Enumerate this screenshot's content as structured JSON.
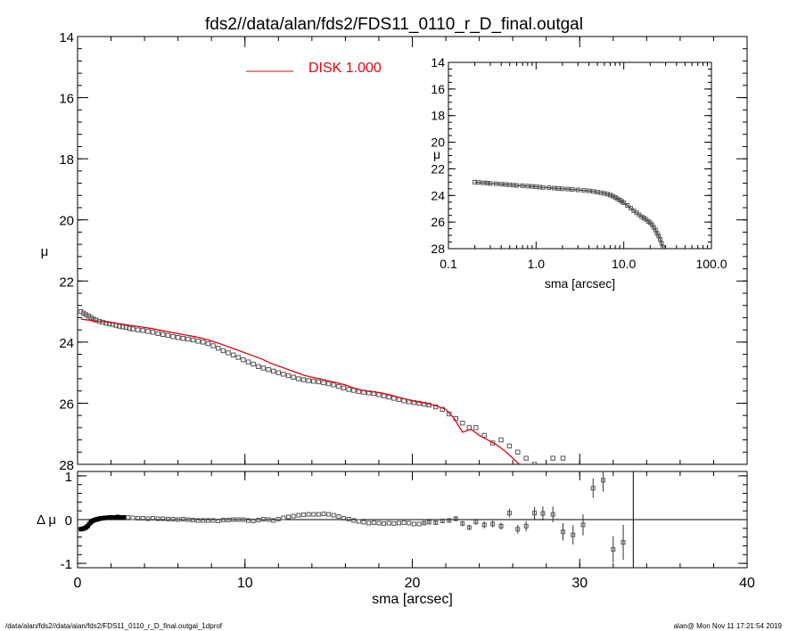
{
  "title": "fds2//data/alan/fds2/FDS11_0110_r_D_final.outgal",
  "footer": {
    "left": "/data/alan/fds2//data/alan/fds2/FDS11_0110_r_D_final.outgal_1dprof",
    "right": "alan@  Mon Nov 11 17:21:54 2019"
  },
  "legend": {
    "label": "DISK  1.000",
    "placement": "top",
    "color": "#e8000b"
  },
  "colors": {
    "model": "#e8000b",
    "data": "#555555",
    "axes": "#000000"
  },
  "chart_data": [
    {
      "type": "scatter",
      "panel": "main",
      "ylabel": "μ",
      "xlim": [
        0,
        40
      ],
      "ylim": [
        28,
        14
      ],
      "yticks": [
        "14",
        "16",
        "18",
        "20",
        "22",
        "24",
        "26",
        "28"
      ],
      "y_inverted": true,
      "series": [
        {
          "name": "data",
          "marker": "open-square",
          "x": [
            0.2,
            0.35,
            0.5,
            0.65,
            0.8,
            0.95,
            1.1,
            1.3,
            1.5,
            1.7,
            1.9,
            2.1,
            2.3,
            2.5,
            2.7,
            2.9,
            3.1,
            3.3,
            3.6,
            3.9,
            4.2,
            4.5,
            4.8,
            5.1,
            5.4,
            5.7,
            6.0,
            6.3,
            6.6,
            6.9,
            7.2,
            7.5,
            7.8,
            8.1,
            8.4,
            8.7,
            9.0,
            9.3,
            9.6,
            9.9,
            10.2,
            10.5,
            10.8,
            11.1,
            11.4,
            11.7,
            12.0,
            12.3,
            12.6,
            12.9,
            13.2,
            13.5,
            13.8,
            14.1,
            14.4,
            14.7,
            15.0,
            15.3,
            15.6,
            15.9,
            16.2,
            16.5,
            16.8,
            17.1,
            17.4,
            17.7,
            18.0,
            18.3,
            18.6,
            18.9,
            19.2,
            19.5,
            19.8,
            20.1,
            20.4,
            20.7,
            21.0,
            21.4,
            21.8,
            22.2,
            22.6,
            23.0,
            23.4,
            23.8,
            24.3,
            24.8,
            25.3,
            25.8,
            26.3,
            26.8,
            27.3,
            27.8,
            28.4,
            29.0
          ],
          "y": [
            23.0,
            23.05,
            23.1,
            23.15,
            23.2,
            23.25,
            23.28,
            23.32,
            23.35,
            23.38,
            23.4,
            23.42,
            23.45,
            23.48,
            23.5,
            23.52,
            23.55,
            23.57,
            23.6,
            23.62,
            23.65,
            23.68,
            23.72,
            23.75,
            23.78,
            23.82,
            23.85,
            23.88,
            23.9,
            23.93,
            23.97,
            24.0,
            24.05,
            24.12,
            24.2,
            24.28,
            24.35,
            24.42,
            24.5,
            24.58,
            24.65,
            24.72,
            24.8,
            24.85,
            24.9,
            24.95,
            25.0,
            25.05,
            25.1,
            25.15,
            25.2,
            25.23,
            25.26,
            25.28,
            25.3,
            25.33,
            25.36,
            25.4,
            25.45,
            25.5,
            25.55,
            25.58,
            25.62,
            25.64,
            25.66,
            25.68,
            25.72,
            25.76,
            25.8,
            25.84,
            25.88,
            25.92,
            25.95,
            25.98,
            26.0,
            26.03,
            26.06,
            26.12,
            26.2,
            26.35,
            26.5,
            26.65,
            26.8,
            26.8,
            27.05,
            27.3,
            27.2,
            27.4,
            27.6,
            27.8,
            28.0,
            28.2,
            27.8,
            27.8
          ]
        },
        {
          "name": "DISK  1.000",
          "type": "line",
          "x": [
            0.2,
            0.5,
            1.0,
            1.5,
            2.0,
            2.5,
            3.0,
            3.5,
            4.0,
            4.5,
            5.0,
            5.5,
            6.0,
            6.5,
            7.0,
            7.5,
            8.0,
            8.5,
            9.0,
            9.5,
            10.0,
            10.5,
            11.0,
            11.5,
            12.0,
            12.5,
            13.0,
            13.5,
            14.0,
            14.5,
            15.0,
            15.5,
            16.0,
            16.5,
            17.0,
            17.5,
            18.0,
            18.5,
            19.0,
            19.5,
            20.0,
            20.5,
            21.0,
            21.5,
            22.0,
            22.5,
            23.0,
            23.5,
            24.0,
            24.5,
            25.0,
            25.5,
            26.0,
            26.5,
            27.0,
            27.5,
            28.0,
            28.5
          ],
          "y": [
            23.25,
            23.27,
            23.3,
            23.33,
            23.36,
            23.4,
            23.44,
            23.48,
            23.52,
            23.56,
            23.62,
            23.67,
            23.72,
            23.77,
            23.82,
            23.88,
            23.96,
            24.05,
            24.15,
            24.25,
            24.35,
            24.45,
            24.55,
            24.68,
            24.78,
            24.88,
            24.98,
            25.08,
            25.15,
            25.2,
            25.27,
            25.33,
            25.4,
            25.5,
            25.58,
            25.62,
            25.65,
            25.7,
            25.78,
            25.85,
            25.92,
            25.97,
            26.02,
            26.1,
            26.2,
            26.5,
            26.95,
            26.85,
            27.05,
            27.2,
            27.35,
            27.55,
            27.8,
            28.05,
            28.2,
            28.3,
            28.2,
            28.2
          ]
        }
      ]
    },
    {
      "type": "scatter",
      "panel": "inset",
      "ylabel": "μ",
      "xlabel": "sma [arcsec]",
      "xscale": "log",
      "xlim": [
        0.1,
        100.0
      ],
      "xticks": [
        "0.1",
        "1.0",
        "10.0",
        "100.0"
      ],
      "ylim": [
        28,
        14
      ],
      "yticks": [
        "14",
        "16",
        "18",
        "20",
        "22",
        "24",
        "26",
        "28"
      ],
      "y_inverted": true,
      "series": [
        {
          "name": "data",
          "marker": "open-square",
          "x": [
            0.2,
            0.22,
            0.25,
            0.28,
            0.3,
            0.35,
            0.4,
            0.45,
            0.5,
            0.55,
            0.6,
            0.7,
            0.8,
            0.9,
            1.0,
            1.1,
            1.2,
            1.4,
            1.6,
            1.8,
            2.0,
            2.3,
            2.6,
            3.0,
            3.5,
            4.0,
            4.5,
            5.0,
            5.5,
            6.0,
            6.5,
            7.0,
            7.5,
            8.0,
            8.5,
            9.0,
            9.5,
            10.0,
            11.0,
            12.0,
            13.0,
            14.0,
            15.0,
            16.0,
            17.0,
            18.0,
            19.0,
            20.0,
            21.0,
            22.0,
            23.0,
            24.0,
            25.0,
            26.0,
            27.0,
            28.0,
            29.0
          ],
          "y": [
            23.0,
            23.02,
            23.05,
            23.07,
            23.1,
            23.12,
            23.15,
            23.18,
            23.2,
            23.22,
            23.25,
            23.27,
            23.3,
            23.32,
            23.35,
            23.37,
            23.4,
            23.42,
            23.45,
            23.48,
            23.5,
            23.52,
            23.55,
            23.58,
            23.62,
            23.65,
            23.7,
            23.75,
            23.8,
            23.85,
            23.9,
            23.97,
            24.05,
            24.15,
            24.25,
            24.35,
            24.45,
            24.55,
            24.75,
            24.95,
            25.15,
            25.3,
            25.45,
            25.6,
            25.7,
            25.8,
            25.95,
            26.05,
            26.2,
            26.4,
            26.6,
            26.85,
            27.05,
            27.3,
            27.6,
            27.9,
            28.2
          ]
        }
      ]
    },
    {
      "type": "scatter",
      "panel": "residual",
      "ylabel": "Δ μ",
      "xlabel": "sma [arcsec]",
      "xlim": [
        0,
        40
      ],
      "xticks": [
        "0",
        "10",
        "20",
        "30",
        "40"
      ],
      "ylim": [
        -1.1,
        1.1
      ],
      "yticks": [
        "1",
        "0",
        "-1"
      ],
      "reference_lines": {
        "y": 0,
        "x": 33.2
      },
      "series": [
        {
          "name": "residuals",
          "marker": "open-square",
          "x": [
            0.2,
            0.3,
            0.4,
            0.5,
            0.6,
            0.7,
            0.8,
            0.9,
            1.0,
            1.1,
            1.2,
            1.3,
            1.4,
            1.5,
            1.6,
            1.7,
            1.8,
            1.9,
            2.0,
            2.2,
            2.4,
            2.6,
            2.8,
            3.0,
            3.3,
            3.6,
            3.9,
            4.2,
            4.5,
            4.8,
            5.1,
            5.4,
            5.7,
            6.0,
            6.3,
            6.6,
            6.9,
            7.2,
            7.5,
            7.8,
            8.1,
            8.4,
            8.7,
            9.0,
            9.3,
            9.6,
            9.9,
            10.2,
            10.5,
            10.8,
            11.1,
            11.4,
            11.7,
            12.0,
            12.3,
            12.6,
            12.9,
            13.2,
            13.5,
            13.8,
            14.1,
            14.4,
            14.7,
            15.0,
            15.3,
            15.6,
            15.9,
            16.2,
            16.5,
            16.8,
            17.1,
            17.4,
            17.7,
            18.0,
            18.3,
            18.6,
            18.9,
            19.2,
            19.5,
            19.8,
            20.1,
            20.4,
            20.7,
            21.0,
            21.4,
            21.8,
            22.2,
            22.6,
            23.0,
            23.4,
            23.8,
            24.3,
            24.8,
            25.3,
            25.8,
            26.3,
            26.8,
            27.3,
            27.8,
            28.4,
            29.0,
            29.6,
            30.2,
            30.8,
            31.4,
            32.0,
            32.6
          ],
          "y": [
            -0.22,
            -0.21,
            -0.2,
            -0.18,
            -0.15,
            -0.1,
            -0.06,
            -0.03,
            -0.01,
            0.0,
            0.01,
            0.02,
            0.03,
            0.03,
            0.04,
            0.04,
            0.04,
            0.05,
            0.05,
            0.05,
            0.06,
            0.05,
            0.05,
            0.05,
            0.04,
            0.03,
            0.03,
            0.02,
            0.03,
            0.02,
            0.02,
            0.01,
            0.01,
            0.0,
            0.01,
            0.0,
            -0.01,
            -0.02,
            -0.02,
            -0.02,
            -0.02,
            -0.03,
            -0.01,
            -0.01,
            0.0,
            0.0,
            0.0,
            -0.02,
            -0.03,
            -0.01,
            0.01,
            0.0,
            -0.02,
            0.01,
            0.04,
            0.06,
            0.08,
            0.1,
            0.11,
            0.12,
            0.12,
            0.12,
            0.13,
            0.12,
            0.1,
            0.07,
            0.03,
            0.01,
            -0.02,
            -0.04,
            -0.06,
            -0.08,
            -0.07,
            -0.08,
            -0.09,
            -0.08,
            -0.09,
            -0.08,
            -0.07,
            -0.08,
            -0.1,
            -0.1,
            -0.08,
            -0.06,
            -0.07,
            -0.03,
            -0.02,
            0.02,
            -0.09,
            -0.18,
            -0.05,
            -0.12,
            -0.1,
            -0.15,
            0.15,
            -0.22,
            -0.15,
            0.15,
            0.14,
            0.12,
            -0.28,
            -0.35,
            -0.12,
            0.72,
            0.9,
            -0.68,
            -0.52
          ],
          "err": [
            0.02,
            0.02,
            0.02,
            0.02,
            0.02,
            0.02,
            0.02,
            0.02,
            0.02,
            0.02,
            0.02,
            0.02,
            0.02,
            0.02,
            0.02,
            0.02,
            0.02,
            0.02,
            0.02,
            0.02,
            0.02,
            0.02,
            0.02,
            0.02,
            0.02,
            0.02,
            0.02,
            0.02,
            0.02,
            0.02,
            0.02,
            0.02,
            0.02,
            0.02,
            0.02,
            0.02,
            0.02,
            0.02,
            0.02,
            0.02,
            0.02,
            0.02,
            0.02,
            0.02,
            0.02,
            0.02,
            0.02,
            0.02,
            0.02,
            0.02,
            0.02,
            0.02,
            0.02,
            0.02,
            0.02,
            0.02,
            0.02,
            0.02,
            0.02,
            0.02,
            0.02,
            0.02,
            0.02,
            0.02,
            0.02,
            0.02,
            0.02,
            0.02,
            0.02,
            0.02,
            0.02,
            0.02,
            0.02,
            0.02,
            0.02,
            0.02,
            0.02,
            0.02,
            0.03,
            0.03,
            0.03,
            0.03,
            0.04,
            0.04,
            0.05,
            0.05,
            0.05,
            0.06,
            0.06,
            0.06,
            0.07,
            0.08,
            0.08,
            0.08,
            0.1,
            0.1,
            0.12,
            0.14,
            0.16,
            0.18,
            0.2,
            0.22,
            0.24,
            0.22,
            0.26,
            0.3,
            0.4
          ]
        }
      ]
    }
  ]
}
